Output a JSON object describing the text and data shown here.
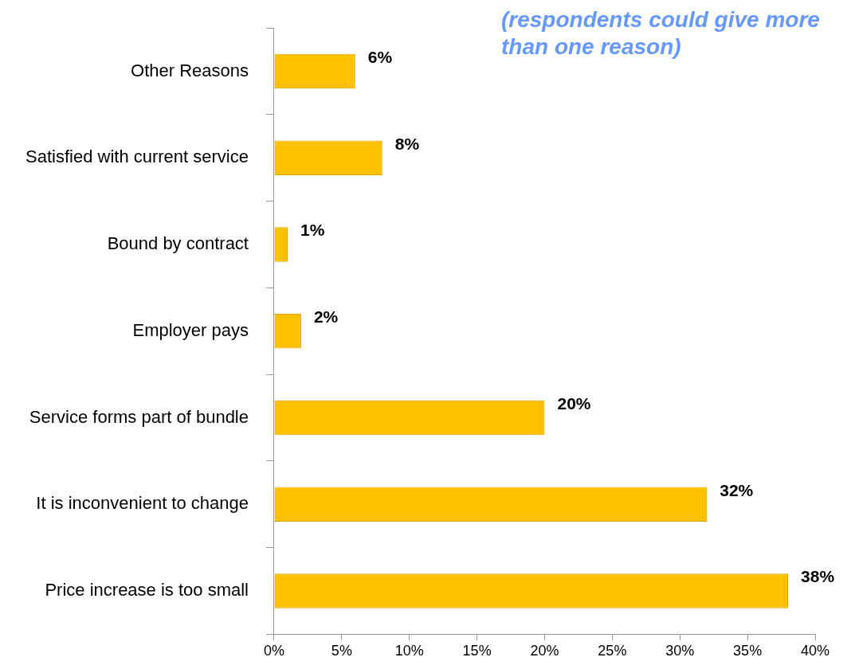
{
  "chart_data": {
    "type": "bar",
    "orientation": "horizontal",
    "categories": [
      "Other Reasons",
      "Satisfied with current service",
      "Bound by contract",
      "Employer pays",
      "Service forms part of bundle",
      "It is inconvenient to change",
      "Price increase is too small"
    ],
    "values": [
      6,
      8,
      1,
      2,
      20,
      32,
      38
    ],
    "value_labels": [
      "6%",
      "8%",
      "1%",
      "2%",
      "20%",
      "32%",
      "38%"
    ],
    "color": "#ffc000",
    "xlim": [
      0,
      40
    ],
    "xticks": [
      {
        "value": 0,
        "label": "0%"
      },
      {
        "value": 5,
        "label": "5%"
      },
      {
        "value": 10,
        "label": "10%"
      },
      {
        "value": 15,
        "label": "15%"
      },
      {
        "value": 20,
        "label": "20%"
      },
      {
        "value": 25,
        "label": "25%"
      },
      {
        "value": 30,
        "label": "30%"
      },
      {
        "value": 35,
        "label": "35%"
      },
      {
        "value": 40,
        "label": "40%"
      }
    ],
    "grid": false,
    "legend": false,
    "annotations": [
      "(respondents could give more than one reason)"
    ]
  }
}
